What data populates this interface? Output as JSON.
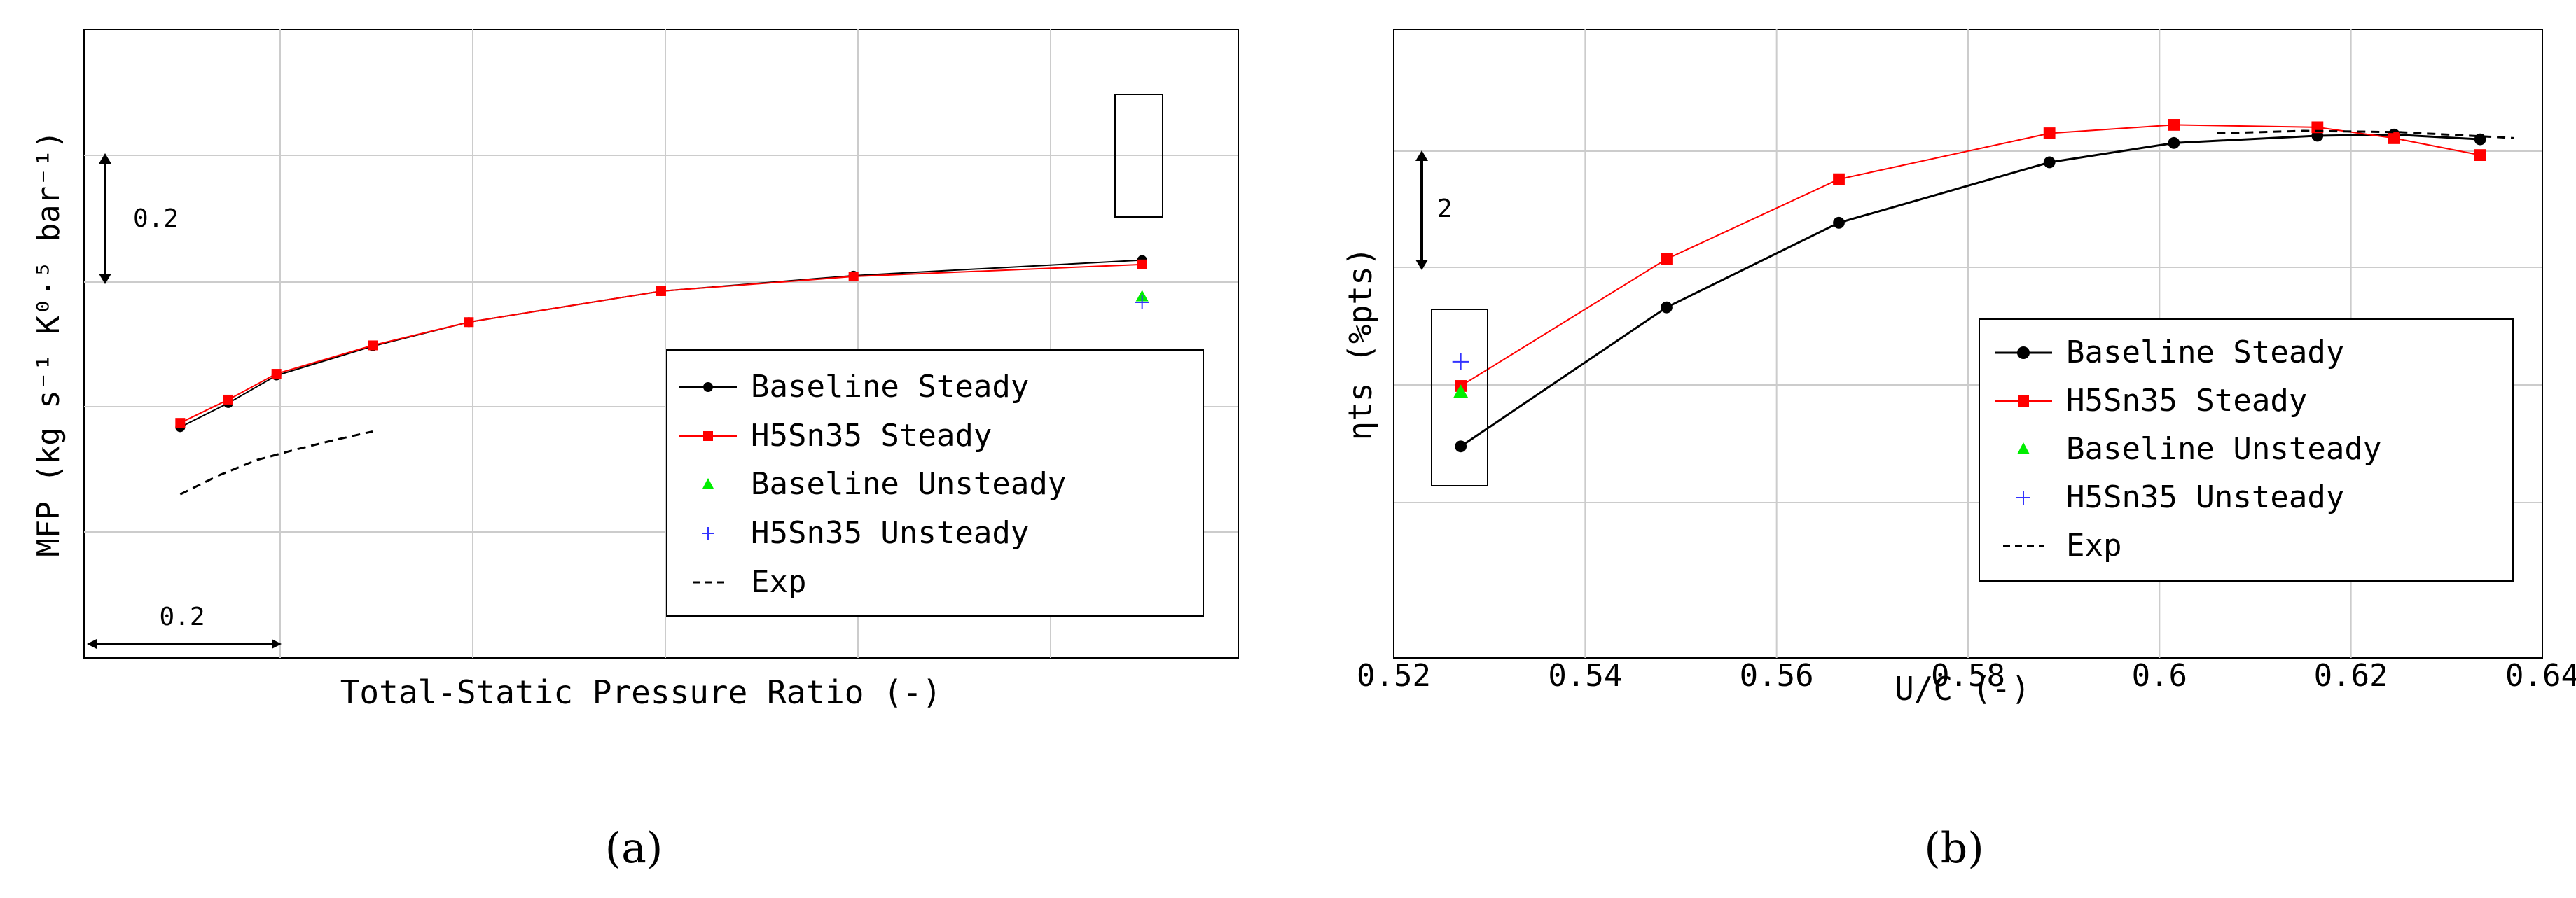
{
  "chart_data": [
    {
      "panel": "a",
      "panel_label": "(a)",
      "type": "line",
      "xlabel": "Total-Static Pressure Ratio (-)",
      "ylabel": "MFP (kg s⁻¹ K⁰·⁵ bar⁻¹)",
      "x_tick_labels": [],
      "y_tick_labels": [],
      "x_range_units": [
        0,
        6
      ],
      "y_range_units": [
        0,
        7.3
      ],
      "x_scale_bar_label": "0.2",
      "y_scale_bar_label": "0.2",
      "legend_position": "bottom-right",
      "series": [
        {
          "name": "Baseline Steady",
          "marker": "circle",
          "color": "#000000",
          "x": [
            0.5,
            0.75,
            1.0,
            1.5,
            2.0,
            3.0,
            4.0,
            5.5
          ],
          "y": [
            2.68,
            2.96,
            3.28,
            3.62,
            3.9,
            4.26,
            4.44,
            4.62
          ]
        },
        {
          "name": "H5Sn35 Steady",
          "marker": "square",
          "color": "#ff0000",
          "x": [
            0.5,
            0.75,
            1.0,
            1.5,
            2.0,
            3.0,
            4.0,
            5.5
          ],
          "y": [
            2.73,
            3.0,
            3.3,
            3.63,
            3.9,
            4.26,
            4.43,
            4.57
          ]
        },
        {
          "name": "Baseline Unsteady",
          "marker": "triangle",
          "color": "#00ee00",
          "x": [
            5.5
          ],
          "y": [
            4.2
          ]
        },
        {
          "name": "H5Sn35 Unsteady",
          "marker": "plus",
          "color": "#3333ff",
          "x": [
            5.5
          ],
          "y": [
            4.13
          ]
        },
        {
          "name": "Exp",
          "marker": "none",
          "color": "#000000",
          "dashed": true,
          "x": [
            0.5,
            0.7,
            0.9,
            1.1,
            1.3,
            1.5
          ],
          "y": [
            1.9,
            2.12,
            2.3,
            2.42,
            2.53,
            2.63
          ]
        }
      ]
    },
    {
      "panel": "b",
      "panel_label": "(b)",
      "type": "line",
      "xlabel": "U/C (-)",
      "ylabel": "ηts (%pts)",
      "x_tick_labels": [
        "0.52",
        "0.54",
        "0.56",
        "0.58",
        "0.6",
        "0.62",
        "0.64"
      ],
      "xlim": [
        0.52,
        0.64
      ],
      "y_range_units": [
        0,
        5.2
      ],
      "y_scale_bar_label": "2",
      "legend_position": "bottom-right",
      "series": [
        {
          "name": "Baseline Steady",
          "marker": "circle",
          "color": "#000000",
          "x": [
            0.527,
            0.5485,
            0.5665,
            0.5885,
            0.6015,
            0.6165,
            0.6245,
            0.6335
          ],
          "y": [
            1.75,
            2.9,
            3.6,
            4.1,
            4.26,
            4.32,
            4.33,
            4.29
          ]
        },
        {
          "name": "H5Sn35 Steady",
          "marker": "square",
          "color": "#ff0000",
          "x": [
            0.527,
            0.5485,
            0.5665,
            0.5885,
            0.6015,
            0.6165,
            0.6245,
            0.6335
          ],
          "y": [
            2.25,
            3.3,
            3.96,
            4.34,
            4.41,
            4.39,
            4.3,
            4.16
          ]
        },
        {
          "name": "Baseline Unsteady",
          "marker": "triangle",
          "color": "#00ee00",
          "x": [
            0.527
          ],
          "y": [
            2.2
          ]
        },
        {
          "name": "H5Sn35 Unsteady",
          "marker": "plus",
          "color": "#3333ff",
          "x": [
            0.527
          ],
          "y": [
            2.45
          ]
        },
        {
          "name": "Exp",
          "marker": "none",
          "color": "#000000",
          "dashed": true,
          "x": [
            0.606,
            0.615,
            0.625,
            0.635,
            0.637
          ],
          "y": [
            4.34,
            4.36,
            4.35,
            4.31,
            4.3
          ]
        }
      ]
    }
  ]
}
